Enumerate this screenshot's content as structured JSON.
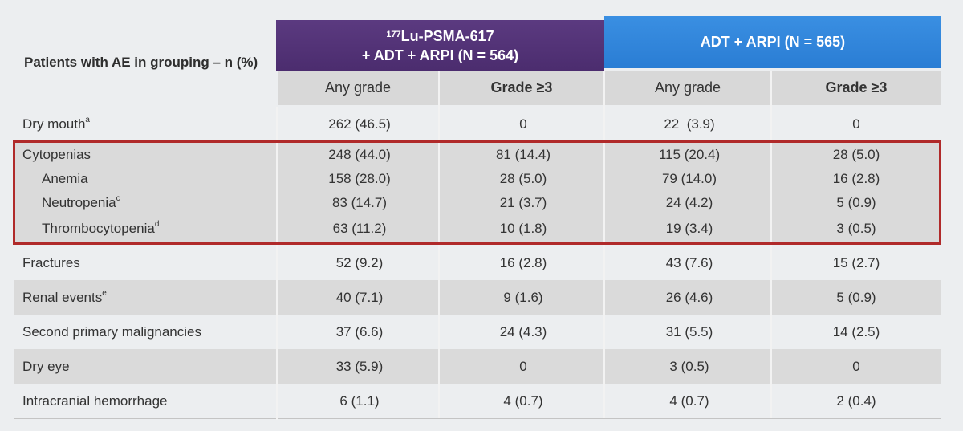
{
  "table": {
    "header_label": "Patients with AE in grouping – n (%)",
    "group_lu": {
      "line1_sup": "177",
      "line1": "Lu-PSMA-617",
      "line2": "+ ADT + ARPI (N = 564)"
    },
    "group_adt": {
      "label": "ADT + ARPI (N = 565)"
    },
    "subheaders": [
      "Any grade",
      "Grade ≥3",
      "Any grade",
      "Grade ≥3"
    ],
    "rows": [
      {
        "label": "Dry mouth",
        "sup": "a",
        "v": [
          "262 (46.5)",
          "0",
          "22  (3.9)",
          "0"
        ]
      },
      {
        "label": "Cytopenias",
        "sup": "",
        "v": [
          "248 (44.0)",
          "81 (14.4)",
          "115 (20.4)",
          "28 (5.0)"
        ]
      },
      {
        "label": "Anemia",
        "sup": "",
        "v": [
          "158 (28.0)",
          "28 (5.0)",
          "79 (14.0)",
          "16 (2.8)"
        ]
      },
      {
        "label": "Neutropenia",
        "sup": "c",
        "v": [
          "83 (14.7)",
          "21 (3.7)",
          "24 (4.2)",
          "5 (0.9)"
        ]
      },
      {
        "label": "Thrombocytopenia",
        "sup": "d",
        "v": [
          "63 (11.2)",
          "10 (1.8)",
          "19 (3.4)",
          "3 (0.5)"
        ]
      },
      {
        "label": "Fractures",
        "sup": "",
        "v": [
          "52 (9.2)",
          "16 (2.8)",
          "43 (7.6)",
          "15 (2.7)"
        ]
      },
      {
        "label": "Renal events",
        "sup": "e",
        "v": [
          "40 (7.1)",
          "9 (1.6)",
          "26 (4.6)",
          "5 (0.9)"
        ]
      },
      {
        "label": "Second primary malignancies",
        "sup": "",
        "v": [
          "37 (6.6)",
          "24 (4.3)",
          "31 (5.5)",
          "14 (2.5)"
        ]
      },
      {
        "label": "Dry eye",
        "sup": "",
        "v": [
          "33 (5.9)",
          "0",
          "3 (0.5)",
          "0"
        ]
      },
      {
        "label": "Intracranial hemorrhage",
        "sup": "",
        "v": [
          "6 (1.1)",
          "4 (0.7)",
          "4 (0.7)",
          "2 (0.4)"
        ]
      }
    ]
  }
}
